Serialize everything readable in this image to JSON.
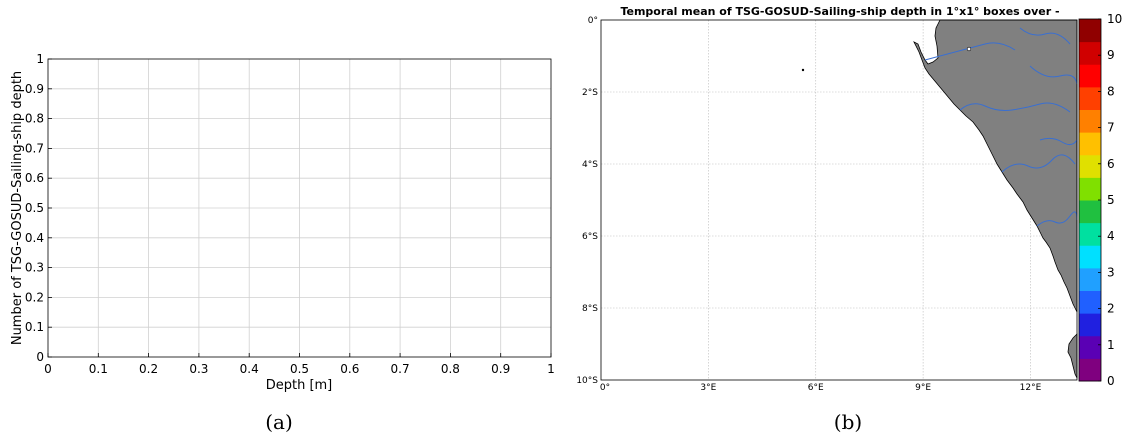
{
  "chart_data": [
    {
      "type": "bar",
      "panel": "(a)",
      "xlabel": "Depth [m]",
      "ylabel": "Number of TSG-GOSUD-Sailing-ship depth",
      "xlim": [
        0,
        1
      ],
      "ylim": [
        0,
        1
      ],
      "xticks": [
        "0",
        "0.1",
        "0.2",
        "0.3",
        "0.4",
        "0.5",
        "0.6",
        "0.7",
        "0.8",
        "0.9",
        "1"
      ],
      "yticks": [
        "0",
        "0.1",
        "0.2",
        "0.3",
        "0.4",
        "0.5",
        "0.6",
        "0.7",
        "0.8",
        "0.9",
        "1"
      ],
      "grid": true,
      "series": []
    },
    {
      "type": "heatmap",
      "panel": "(b)",
      "title": "Temporal mean of TSG-GOSUD-Sailing-ship depth in 1°x1° boxes over -",
      "xticks": [
        "0°",
        "3°E",
        "6°E",
        "9°E",
        "12°E"
      ],
      "yticks": [
        "0°",
        "2°S",
        "4°S",
        "6°S",
        "8°S",
        "10°S"
      ],
      "lon_range": [
        0,
        13.3
      ],
      "lat_range": [
        -10,
        0
      ],
      "colorbar": {
        "ticks": [
          "0",
          "1",
          "2",
          "3",
          "4",
          "5",
          "6",
          "7",
          "8",
          "9",
          "10"
        ],
        "range": [
          0,
          10
        ],
        "colors": [
          "#7f007f",
          "#5a00b4",
          "#2020e0",
          "#2060ff",
          "#20a0ff",
          "#00e0ff",
          "#00e0a0",
          "#20c040",
          "#80e000",
          "#e0e000",
          "#ffc000",
          "#ff8000",
          "#ff4000",
          "#ff0000",
          "#d00000",
          "#900000"
        ]
      },
      "land_color": "#808080",
      "river_color": "#3a6fd0",
      "grid": true,
      "values": []
    }
  ],
  "captions": {
    "a": "(a)",
    "b": "(b)"
  }
}
